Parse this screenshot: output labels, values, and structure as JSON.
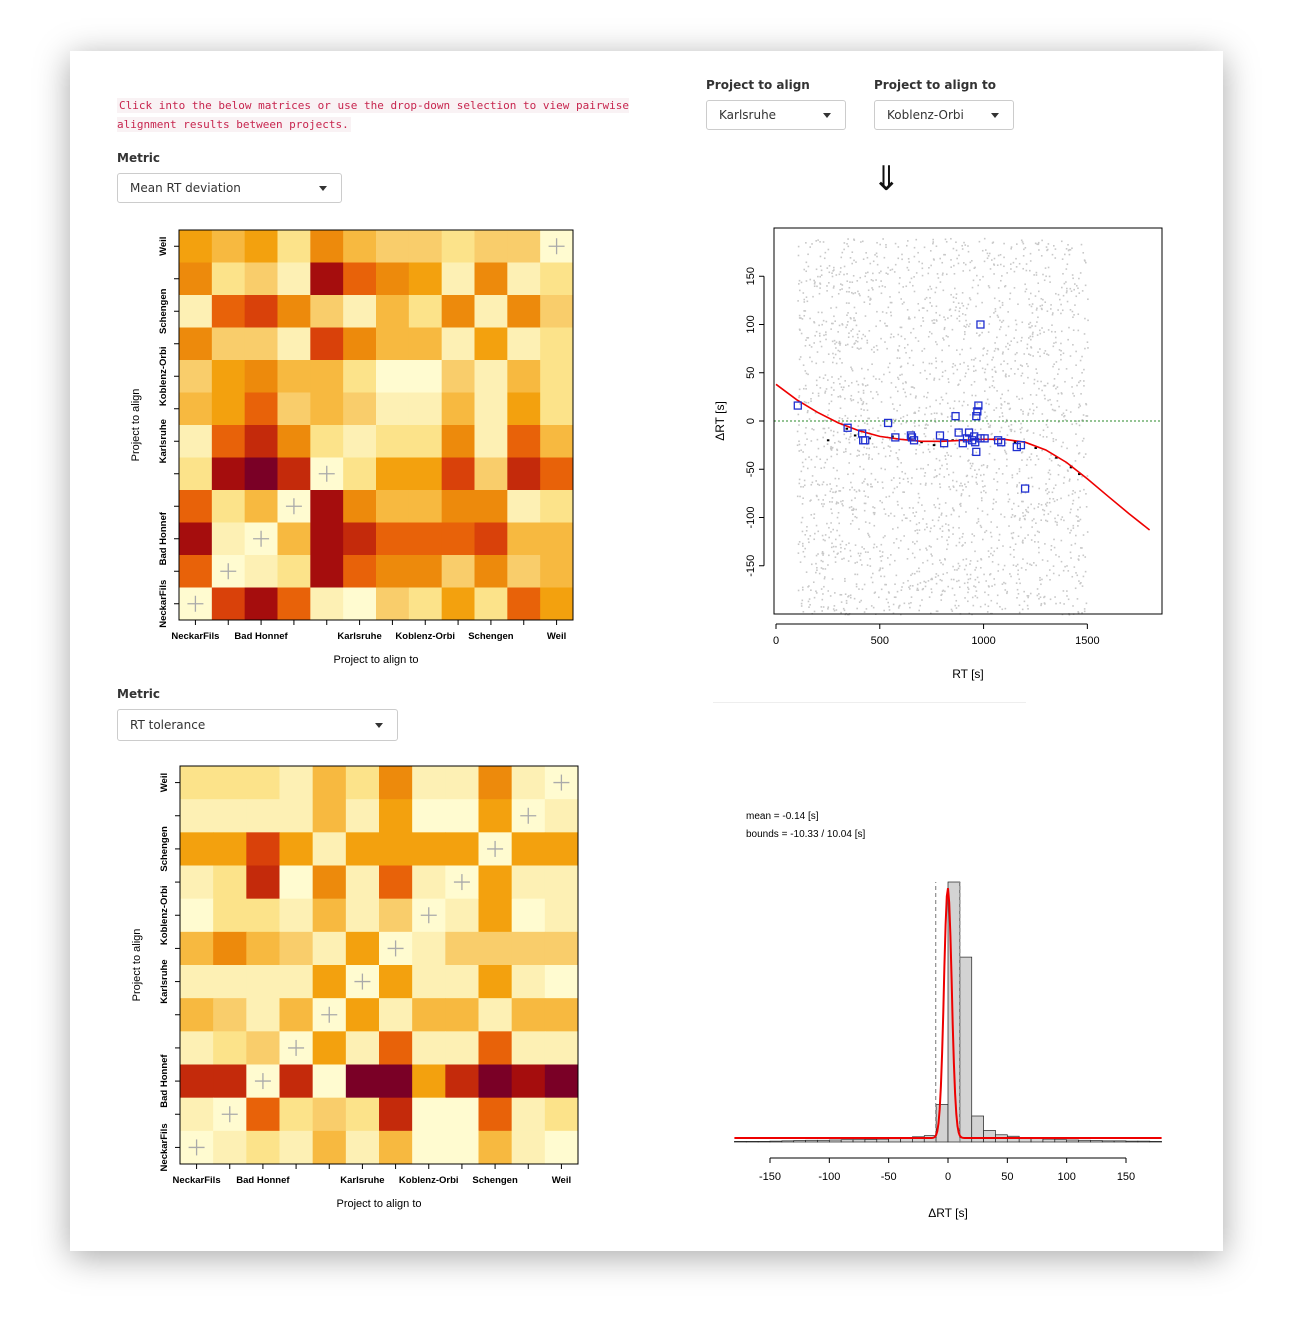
{
  "info_text": "Click into the below matrices or use the drop-down selection to view pairwise alignment results between projects.",
  "selectors": {
    "project_to_align": {
      "label": "Project to align",
      "value": "Karlsruhe"
    },
    "project_to_align_to": {
      "label": "Project to align to",
      "value": "Koblenz-Orbi"
    }
  },
  "down_arrow": "⇓",
  "matrix1": {
    "metric_label": "Metric",
    "metric_value": "Mean RT deviation",
    "xlabel": "Project to align to",
    "ylabel": "Project to align",
    "x_tick_labels": [
      "NeckarFils",
      "Bad Honnef",
      "Karlsruhe",
      "Koblenz-Orbi",
      "Schengen",
      "Weil"
    ],
    "y_tick_labels": [
      "NeckarFils",
      "Bad Honnef",
      "Karlsruhe",
      "Koblenz-Orbi",
      "Schengen",
      "Weil"
    ]
  },
  "matrix2": {
    "metric_label": "Metric",
    "metric_value": "RT tolerance",
    "xlabel": "Project to align to",
    "ylabel": "Project to align",
    "x_tick_labels": [
      "NeckarFils",
      "Bad Honnef",
      "Karlsruhe",
      "Koblenz-Orbi",
      "Schengen",
      "Weil"
    ],
    "y_tick_labels": [
      "NeckarFils",
      "Bad Honnef",
      "Karlsruhe",
      "Koblenz-Orbi",
      "Schengen",
      "Weil"
    ]
  },
  "scatter_stats": {},
  "hist_stats": {
    "mean_text": "mean = -0.14 [s]",
    "bounds_text": "bounds = -10.33 / 10.04 [s]"
  },
  "chart_data": [
    {
      "type": "heatmap",
      "name": "Mean RT deviation matrix",
      "xlabel": "Project to align to",
      "ylabel": "Project to align",
      "x_ticks": [
        "NeckarFils",
        "Bad Honnef",
        "Karlsruhe",
        "Koblenz-Orbi",
        "Schengen",
        "Weil"
      ],
      "y_ticks": [
        "NeckarFils",
        "Bad Honnef",
        "Karlsruhe",
        "Koblenz-Orbi",
        "Schengen",
        "Weil"
      ],
      "palette": [
        "#fffbd0",
        "#fdf0b4",
        "#fce38a",
        "#f9cd6b",
        "#f7b940",
        "#f3a10e",
        "#ed8a0c",
        "#e86209",
        "#d9410a",
        "#c42a0b",
        "#a50d0d",
        "#7a0026"
      ],
      "matrix_rows_top_to_bottom": [
        [
          5,
          4,
          5,
          2,
          6,
          4,
          3,
          3,
          2,
          3,
          3,
          -1
        ],
        [
          6,
          2,
          3,
          1,
          10,
          7,
          6,
          5,
          1,
          6,
          1,
          2
        ],
        [
          1,
          7,
          8,
          6,
          3,
          1,
          4,
          2,
          6,
          1,
          6,
          3
        ],
        [
          6,
          3,
          3,
          1,
          8,
          6,
          4,
          4,
          1,
          5,
          1,
          2
        ],
        [
          3,
          5,
          6,
          4,
          4,
          2,
          0,
          0,
          3,
          1,
          4,
          2
        ],
        [
          4,
          5,
          7,
          3,
          4,
          3,
          1,
          1,
          4,
          1,
          5,
          2
        ],
        [
          1,
          7,
          9,
          6,
          2,
          1,
          2,
          2,
          6,
          1,
          7,
          4
        ],
        [
          2,
          10,
          11,
          9,
          -1,
          2,
          5,
          5,
          8,
          3,
          9,
          7
        ],
        [
          7,
          2,
          4,
          -1,
          10,
          6,
          4,
          4,
          6,
          6,
          1,
          2
        ],
        [
          10,
          1,
          -1,
          4,
          10,
          9,
          7,
          7,
          7,
          8,
          4,
          4
        ],
        [
          7,
          -1,
          1,
          2,
          10,
          7,
          6,
          6,
          3,
          6,
          3,
          4
        ],
        [
          -1,
          8,
          10,
          7,
          1,
          0,
          3,
          2,
          5,
          2,
          7,
          5
        ]
      ]
    },
    {
      "type": "scatter",
      "name": "RT alignment",
      "xlabel": "RT [s]",
      "ylabel": "ΔRT [s]",
      "xlim": [
        0,
        1850
      ],
      "ylim": [
        -200,
        200
      ],
      "x_ticks": [
        0,
        500,
        1000,
        1500
      ],
      "y_ticks": [
        -150,
        -100,
        -50,
        0,
        50,
        100,
        150
      ],
      "reference_line_y": 0,
      "fit_curve": {
        "x": [
          0,
          100,
          200,
          300,
          400,
          500,
          600,
          700,
          800,
          900,
          1000,
          1100,
          1200,
          1300,
          1400,
          1500,
          1600,
          1700,
          1800
        ],
        "y": [
          38,
          22,
          9,
          -2,
          -10,
          -16,
          -19,
          -21,
          -21,
          -20,
          -19,
          -19,
          -22,
          -30,
          -43,
          -60,
          -78,
          -96,
          -113
        ]
      },
      "anchor_points_blue": [
        [
          105,
          16
        ],
        [
          345,
          -7
        ],
        [
          415,
          -13
        ],
        [
          420,
          -20
        ],
        [
          430,
          -20
        ],
        [
          540,
          -2
        ],
        [
          575,
          -17
        ],
        [
          650,
          -15
        ],
        [
          655,
          -17
        ],
        [
          665,
          -20
        ],
        [
          790,
          -15
        ],
        [
          810,
          -23
        ],
        [
          865,
          5
        ],
        [
          880,
          -12
        ],
        [
          900,
          -23
        ],
        [
          920,
          -18
        ],
        [
          930,
          -12
        ],
        [
          945,
          -20
        ],
        [
          955,
          -16
        ],
        [
          960,
          -22
        ],
        [
          965,
          -32
        ],
        [
          965,
          5
        ],
        [
          970,
          10
        ],
        [
          975,
          16
        ],
        [
          985,
          -18
        ],
        [
          1005,
          -18
        ],
        [
          1070,
          -20
        ],
        [
          1085,
          -22
        ],
        [
          1160,
          -27
        ],
        [
          1180,
          -25
        ],
        [
          1200,
          -70
        ],
        [
          985,
          100
        ]
      ],
      "matched_points_black": [
        [
          250,
          -20
        ],
        [
          340,
          -8
        ],
        [
          380,
          -15
        ],
        [
          450,
          -18
        ],
        [
          560,
          -16
        ],
        [
          640,
          -18
        ],
        [
          700,
          -22
        ],
        [
          760,
          -25
        ],
        [
          850,
          -20
        ],
        [
          950,
          -19
        ],
        [
          1050,
          -19
        ],
        [
          1150,
          -22
        ],
        [
          1250,
          -28
        ],
        [
          1350,
          -38
        ],
        [
          1420,
          -48
        ],
        [
          1460,
          -55
        ]
      ],
      "background_points": "dense grey cloud of all pairwise matches between x≈100 and x≈1500, y spanning roughly -200 to 200"
    },
    {
      "type": "heatmap",
      "name": "RT tolerance matrix",
      "xlabel": "Project to align to",
      "ylabel": "Project to align",
      "x_ticks": [
        "NeckarFils",
        "Bad Honnef",
        "Karlsruhe",
        "Koblenz-Orbi",
        "Schengen",
        "Weil"
      ],
      "y_ticks": [
        "NeckarFils",
        "Bad Honnef",
        "Karlsruhe",
        "Koblenz-Orbi",
        "Schengen",
        "Weil"
      ],
      "palette": [
        "#fffbd0",
        "#fdf0b4",
        "#fce38a",
        "#f9cd6b",
        "#f7b940",
        "#f3a10e",
        "#ed8a0c",
        "#e86209",
        "#d9410a",
        "#c42a0b",
        "#a50d0d",
        "#7a0026"
      ],
      "matrix_rows_top_to_bottom": [
        [
          2,
          2,
          2,
          1,
          4,
          2,
          6,
          1,
          1,
          6,
          1,
          -1
        ],
        [
          1,
          1,
          1,
          1,
          4,
          1,
          5,
          0,
          0,
          5,
          -1,
          1
        ],
        [
          5,
          5,
          8,
          5,
          1,
          5,
          5,
          5,
          5,
          -1,
          5,
          5
        ],
        [
          1,
          2,
          9,
          0,
          6,
          1,
          7,
          1,
          -1,
          5,
          1,
          1
        ],
        [
          0,
          2,
          2,
          1,
          4,
          1,
          3,
          -1,
          1,
          5,
          0,
          1
        ],
        [
          4,
          6,
          4,
          3,
          1,
          5,
          -1,
          1,
          3,
          3,
          3,
          3
        ],
        [
          1,
          1,
          1,
          1,
          5,
          -1,
          5,
          1,
          1,
          5,
          1,
          0
        ],
        [
          4,
          3,
          1,
          4,
          -1,
          5,
          1,
          4,
          4,
          1,
          4,
          4
        ],
        [
          1,
          2,
          3,
          -1,
          5,
          1,
          7,
          1,
          1,
          7,
          1,
          1
        ],
        [
          9,
          9,
          -1,
          9,
          0,
          11,
          11,
          5,
          9,
          11,
          10,
          11
        ],
        [
          1,
          -1,
          7,
          2,
          3,
          2,
          9,
          0,
          0,
          7,
          1,
          2
        ],
        [
          -1,
          1,
          2,
          1,
          4,
          1,
          4,
          0,
          0,
          4,
          1,
          0
        ]
      ]
    },
    {
      "type": "bar",
      "name": "ΔRT histogram",
      "xlabel": "ΔRT [s]",
      "x_ticks": [
        -150,
        -100,
        -50,
        0,
        50,
        100,
        150
      ],
      "bin_width": 10,
      "bin_edges_start": -180,
      "counts": [
        2,
        2,
        2,
        3,
        4,
        5,
        6,
        6,
        7,
        8,
        8,
        9,
        10,
        12,
        14,
        18,
        22,
        130,
        900,
        640,
        90,
        40,
        25,
        20,
        15,
        12,
        10,
        8,
        7,
        6,
        5,
        4,
        4,
        3,
        3,
        2
      ],
      "fit": {
        "mean": -0.14,
        "bounds": [
          -10.33,
          10.04
        ]
      }
    }
  ]
}
